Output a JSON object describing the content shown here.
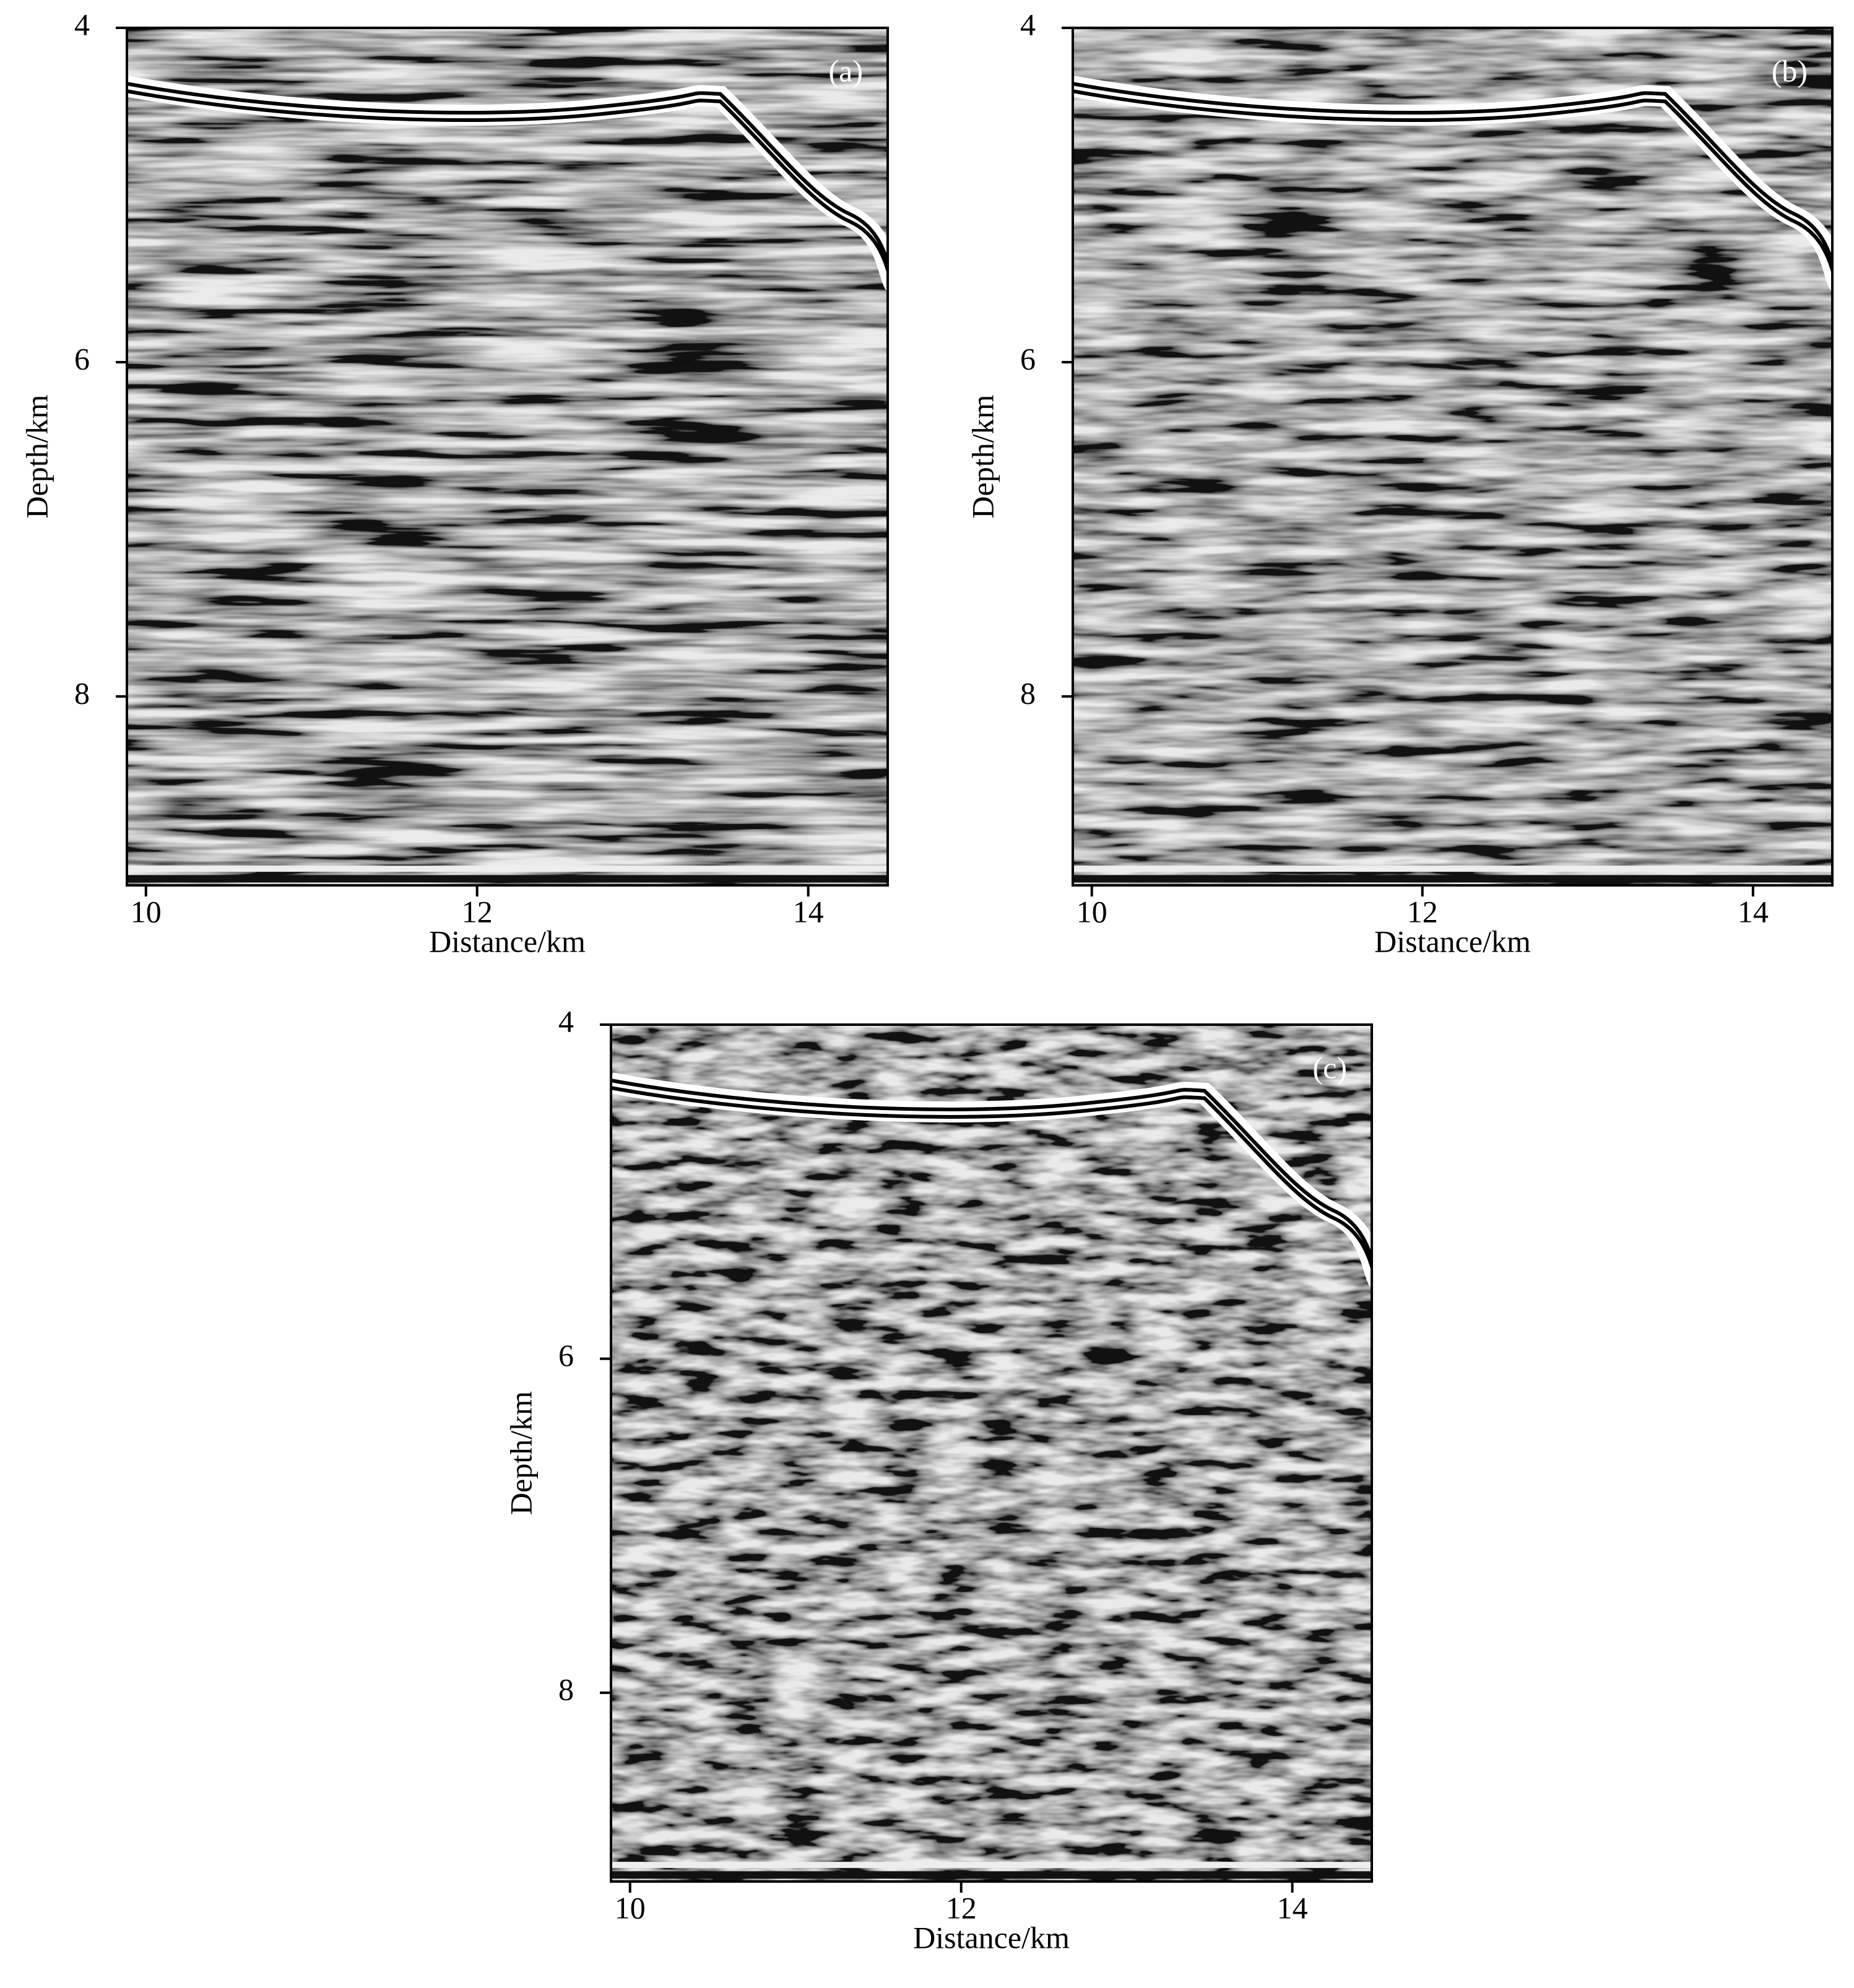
{
  "chart_data": [
    {
      "type": "image",
      "panel_label": "(a)",
      "xlabel": "Distance/km",
      "ylabel": "Depth/km",
      "xlim": [
        9.885,
        14.48
      ],
      "xticks": [
        10,
        12,
        14
      ],
      "ylim": [
        9.13,
        4
      ],
      "yticks": [
        4,
        6,
        8
      ]
    },
    {
      "type": "image",
      "panel_label": "(b)",
      "xlabel": "Distance/km",
      "ylabel": "Depth/km",
      "xlim": [
        9.885,
        14.48
      ],
      "xticks": [
        10,
        12,
        14
      ],
      "ylim": [
        9.13,
        4
      ],
      "yticks": [
        4,
        6,
        8
      ]
    },
    {
      "type": "image",
      "panel_label": "(c)",
      "xlabel": "Distance/km",
      "ylabel": "Depth/km",
      "xlim": [
        9.885,
        14.48
      ],
      "xticks": [
        10,
        12,
        14
      ],
      "ylim": [
        9.13,
        4
      ],
      "yticks": [
        4,
        6,
        8
      ]
    }
  ]
}
